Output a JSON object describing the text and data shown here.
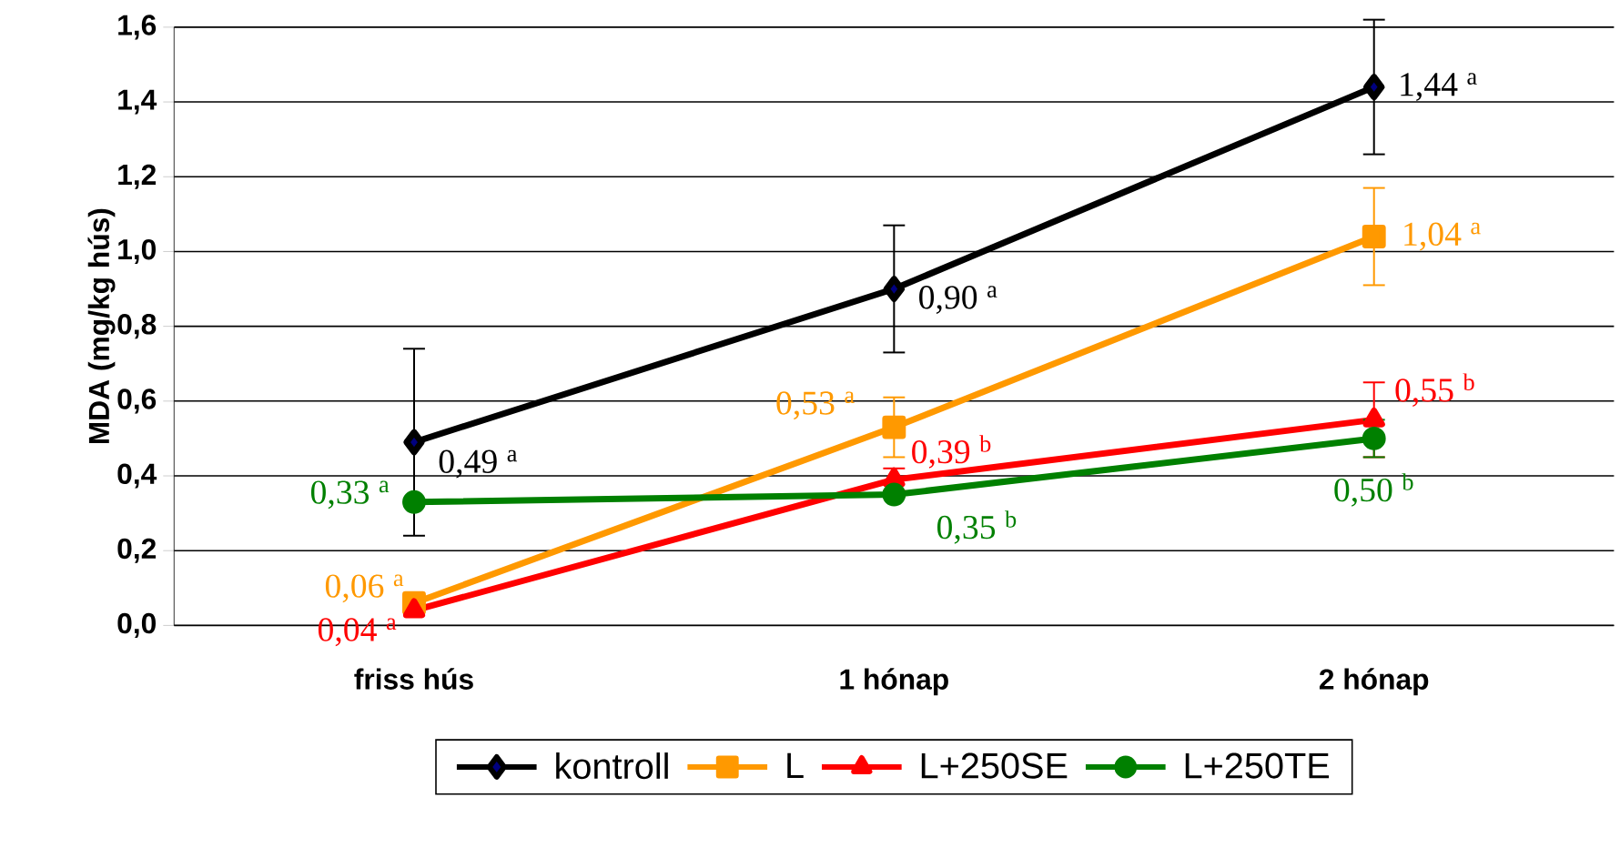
{
  "chart_data": {
    "type": "line",
    "ylabel": "MDA (mg/kg hús)",
    "categories": [
      "friss hús",
      "1 hónap",
      "2 hónap"
    ],
    "ylim": [
      0,
      1.6
    ],
    "yticks": [
      {
        "value": 0,
        "label": "0,0"
      },
      {
        "value": 0.2,
        "label": "0,2"
      },
      {
        "value": 0.4,
        "label": "0,4"
      },
      {
        "value": 0.6,
        "label": "0,6"
      },
      {
        "value": 0.8,
        "label": "0,8"
      },
      {
        "value": 1.0,
        "label": "1,0"
      },
      {
        "value": 1.2,
        "label": "1,2"
      },
      {
        "value": 1.4,
        "label": "1,4"
      },
      {
        "value": 1.6,
        "label": "1,6"
      }
    ],
    "grid": "y",
    "legend": "bottom",
    "series": [
      {
        "name": "kontroll",
        "color": "#000000",
        "marker": "diamond",
        "values": [
          0.49,
          0.9,
          1.44
        ],
        "errors": [
          0.25,
          0.17,
          0.18
        ],
        "value_labels": [
          "0,49 $^{a}$",
          "0,90 $^{a}$",
          "1,44 $^{a}$"
        ]
      },
      {
        "name": "L",
        "color": "#ff9900",
        "marker": "square",
        "values": [
          0.06,
          0.53,
          1.04
        ],
        "errors": [
          null,
          0.08,
          0.13
        ],
        "value_labels": [
          "0,06 $^{a}$",
          "0,53 $^{a}$",
          "1,04 $^{a}$"
        ]
      },
      {
        "name": "L+250SE",
        "color": "#ff0000",
        "marker": "triangle",
        "values": [
          0.04,
          0.39,
          0.55
        ],
        "errors": [
          null,
          0.03,
          0.1
        ],
        "value_labels": [
          "0,04 $^{a}$",
          "0,39 $^{b}$",
          "0,55 $^{b}$"
        ]
      },
      {
        "name": "L+250TE",
        "color": "#008000",
        "marker": "circle",
        "values": [
          0.33,
          0.35,
          0.5
        ],
        "errors": [
          null,
          null,
          0.05
        ],
        "value_labels": [
          "0,33 $^{a}$",
          "0,35 $^{b}$",
          "0,50 $^{b}$"
        ]
      }
    ]
  }
}
